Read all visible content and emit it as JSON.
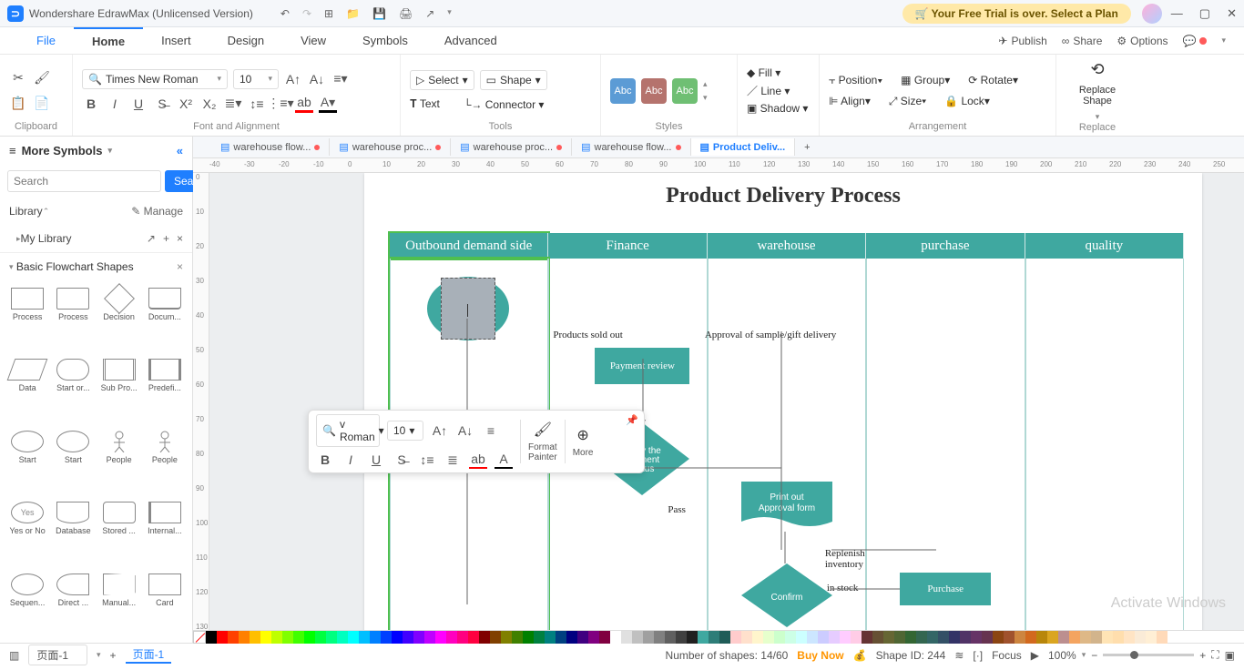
{
  "app": {
    "title": "Wondershare EdrawMax (Unlicensed Version)",
    "trial": "Your Free Trial is over. Select a Plan"
  },
  "menu": {
    "file": "File",
    "home": "Home",
    "insert": "Insert",
    "design": "Design",
    "view": "View",
    "symbols": "Symbols",
    "advanced": "Advanced",
    "publish": "Publish",
    "share": "Share",
    "options": "Options"
  },
  "ribbon": {
    "clipboard": "Clipboard",
    "font_align": "Font and Alignment",
    "font_family": "Times New Roman",
    "font_size": "10",
    "select": "Select",
    "shape": "Shape",
    "text": "Text",
    "connector": "Connector",
    "tools": "Tools",
    "styles": "Styles",
    "fill": "Fill",
    "line": "Line",
    "shadow": "Shadow",
    "position": "Position",
    "align": "Align",
    "group": "Group",
    "size": "Size",
    "rotate": "Rotate",
    "lock": "Lock",
    "arrangement": "Arrangement",
    "replace_shape": "Replace\nShape",
    "replace": "Replace",
    "abc": "Abc"
  },
  "sidebar": {
    "more": "More Symbols",
    "search_placeholder": "Search",
    "search_btn": "Search",
    "library": "Library",
    "manage": "Manage",
    "mylib": "My Library",
    "section": "Basic Flowchart Shapes",
    "shapes": [
      "Process",
      "Process",
      "Decision",
      "Docum...",
      "Data",
      "Start or...",
      "Sub Pro...",
      "Predefi...",
      "Start",
      "Start",
      "People",
      "People",
      "Yes or No",
      "Database",
      "Stored ...",
      "Internal...",
      "Sequen...",
      "Direct ...",
      "Manual...",
      "Card"
    ]
  },
  "doctabs": {
    "t1": "warehouse flow...",
    "t2": "warehouse proc...",
    "t3": "warehouse proc...",
    "t4": "warehouse flow...",
    "t5": "Product Deliv..."
  },
  "ruler_h": [
    "-40",
    "-30",
    "-20",
    "-10",
    "0",
    "10",
    "20",
    "30",
    "40",
    "50",
    "60",
    "70",
    "80",
    "90",
    "100",
    "110",
    "120",
    "130",
    "140",
    "150",
    "160",
    "170",
    "180",
    "190",
    "200",
    "210",
    "220",
    "230",
    "240",
    "250"
  ],
  "ruler_v": [
    "0",
    "10",
    "20",
    "30",
    "40",
    "50",
    "60",
    "70",
    "80",
    "90",
    "100",
    "110",
    "120",
    "130"
  ],
  "flowchart": {
    "title": "Product Delivery Process",
    "lanes": [
      "Outbound demand side",
      "Finance",
      "warehouse",
      "purchase",
      "quality"
    ],
    "labels": {
      "products_sold": "Products sold out",
      "approval_sample": "Approval of sample/gift delivery",
      "payment_review": "Payment review",
      "verify_payment": "Verify the\npayment\nstatus",
      "pass": "Pass",
      "print_approval": "Print out\nApproval form",
      "replenish": "Replenish inventory",
      "confirm": "Confirm",
      "in_stock": "in stock",
      "purchase": "Purchase"
    },
    "colors": {
      "lane_header": "#3fa8a0",
      "shape_fill": "#3fa8a0",
      "edit_fill": "#a8b0b8",
      "selection": "#4fbf4f"
    }
  },
  "minibar": {
    "font": "v Roman",
    "size": "10",
    "format_painter": "Format\nPainter",
    "more": "More"
  },
  "statusbar": {
    "page_sel": "页面-1",
    "page_tab": "页面-1",
    "shapes_count": "Number of shapes: 14/60",
    "buy_now": "Buy Now",
    "shape_id": "Shape ID: 244",
    "focus": "Focus",
    "zoom": "100%"
  },
  "watermark": {
    "l1": "Activate Windows"
  },
  "colorswatches": [
    "#000000",
    "#ff0000",
    "#ff4000",
    "#ff8000",
    "#ffbf00",
    "#ffff00",
    "#bfff00",
    "#80ff00",
    "#40ff00",
    "#00ff00",
    "#00ff40",
    "#00ff80",
    "#00ffbf",
    "#00ffff",
    "#00bfff",
    "#0080ff",
    "#0040ff",
    "#0000ff",
    "#4000ff",
    "#8000ff",
    "#bf00ff",
    "#ff00ff",
    "#ff00bf",
    "#ff0080",
    "#ff0040",
    "#800000",
    "#804000",
    "#808000",
    "#408000",
    "#008000",
    "#008040",
    "#008080",
    "#004080",
    "#000080",
    "#400080",
    "#800080",
    "#800040",
    "#ffffff",
    "#e0e0e0",
    "#c0c0c0",
    "#a0a0a0",
    "#808080",
    "#606060",
    "#404040",
    "#202020",
    "#3fa8a0",
    "#2e7d78",
    "#1f5c58",
    "#ffcccc",
    "#ffe0cc",
    "#fff5cc",
    "#e6ffcc",
    "#ccffcc",
    "#ccffe6",
    "#ccffff",
    "#cce6ff",
    "#ccccff",
    "#e6ccff",
    "#ffccff",
    "#ffcce6",
    "#663333",
    "#665033",
    "#666633",
    "#506633",
    "#336633",
    "#336650",
    "#336666",
    "#335066",
    "#333366",
    "#503366",
    "#663366",
    "#663350",
    "#8b4513",
    "#a0522d",
    "#cd853f",
    "#d2691e",
    "#b8860b",
    "#daa520",
    "#bc8f8f",
    "#f4a460",
    "#deb887",
    "#d2b48c",
    "#ffe4b5",
    "#ffdead",
    "#ffe4c4",
    "#faebd7",
    "#ffefd5",
    "#ffdab9"
  ]
}
